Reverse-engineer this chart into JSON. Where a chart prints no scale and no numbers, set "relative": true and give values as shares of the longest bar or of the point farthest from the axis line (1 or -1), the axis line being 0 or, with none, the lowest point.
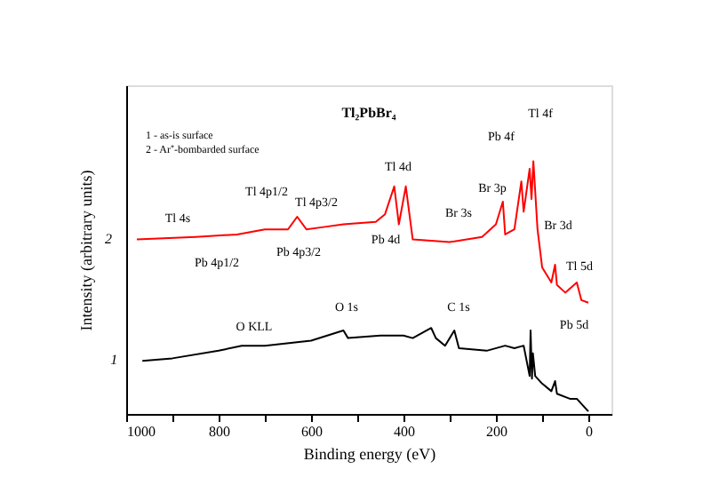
{
  "chart_data": {
    "type": "line",
    "title": "Tl₂PbBr₄",
    "xlabel": "Binding energy (eV)",
    "ylabel": "Intensity (arbitrary units)",
    "relative": true,
    "xlim": [
      1000,
      -50
    ],
    "xticks": [
      1000,
      {
        "value": 900,
        "label": null
      },
      800,
      {
        "value": 700,
        "label": null
      },
      600,
      {
        "value": 500,
        "label": null
      },
      400,
      {
        "value": 300,
        "label": null
      },
      200,
      {
        "value": 100,
        "label": null
      },
      0
    ],
    "grid": false,
    "marker": "none",
    "line_style": "solid",
    "series": [
      {
        "name": "2",
        "color": "#ff0000",
        "x": [
          977,
          850,
          760,
          700,
          650,
          630,
          610,
          570,
          530,
          460,
          440,
          420,
          410,
          395,
          380,
          300,
          230,
          200,
          185,
          180,
          160,
          145,
          140,
          127,
          123,
          119,
          110,
          100,
          80,
          72,
          68,
          50,
          25,
          15,
          0
        ],
        "values": [
          0.69,
          0.7,
          0.71,
          0.73,
          0.73,
          0.78,
          0.73,
          0.74,
          0.75,
          0.76,
          0.79,
          0.9,
          0.75,
          0.9,
          0.69,
          0.68,
          0.7,
          0.75,
          0.84,
          0.71,
          0.73,
          0.92,
          0.8,
          0.97,
          0.85,
          1.0,
          0.73,
          0.58,
          0.52,
          0.59,
          0.51,
          0.48,
          0.52,
          0.45,
          0.44
        ]
      },
      {
        "name": "1",
        "color": "#000000",
        "x": [
          965,
          900,
          800,
          750,
          700,
          600,
          530,
          520,
          450,
          400,
          380,
          340,
          330,
          310,
          290,
          280,
          220,
          180,
          160,
          140,
          127,
          125,
          122,
          120,
          115,
          100,
          80,
          72,
          68,
          40,
          25,
          15,
          0
        ],
        "values": [
          0.21,
          0.22,
          0.25,
          0.27,
          0.27,
          0.29,
          0.33,
          0.3,
          0.31,
          0.31,
          0.3,
          0.34,
          0.3,
          0.27,
          0.33,
          0.26,
          0.25,
          0.27,
          0.26,
          0.27,
          0.15,
          0.33,
          0.14,
          0.24,
          0.15,
          0.12,
          0.09,
          0.13,
          0.08,
          0.06,
          0.06,
          0.04,
          0.01
        ]
      }
    ],
    "annotations": [
      "1 - as-is surface",
      "2 - Ar⁺-bombarded surface",
      "Tl 4s",
      "Tl 4p1/2",
      "Tl 4p3/2",
      "Pb 4p1/2",
      "Pb 4p3/2",
      "Tl 4d",
      "Pb 4d",
      "Br 3s",
      "Br 3p",
      "Pb 4f",
      "Tl 4f",
      "Br 3d",
      "Tl 5d",
      "Pb 5d",
      "O KLL",
      "O 1s",
      "C 1s"
    ]
  }
}
